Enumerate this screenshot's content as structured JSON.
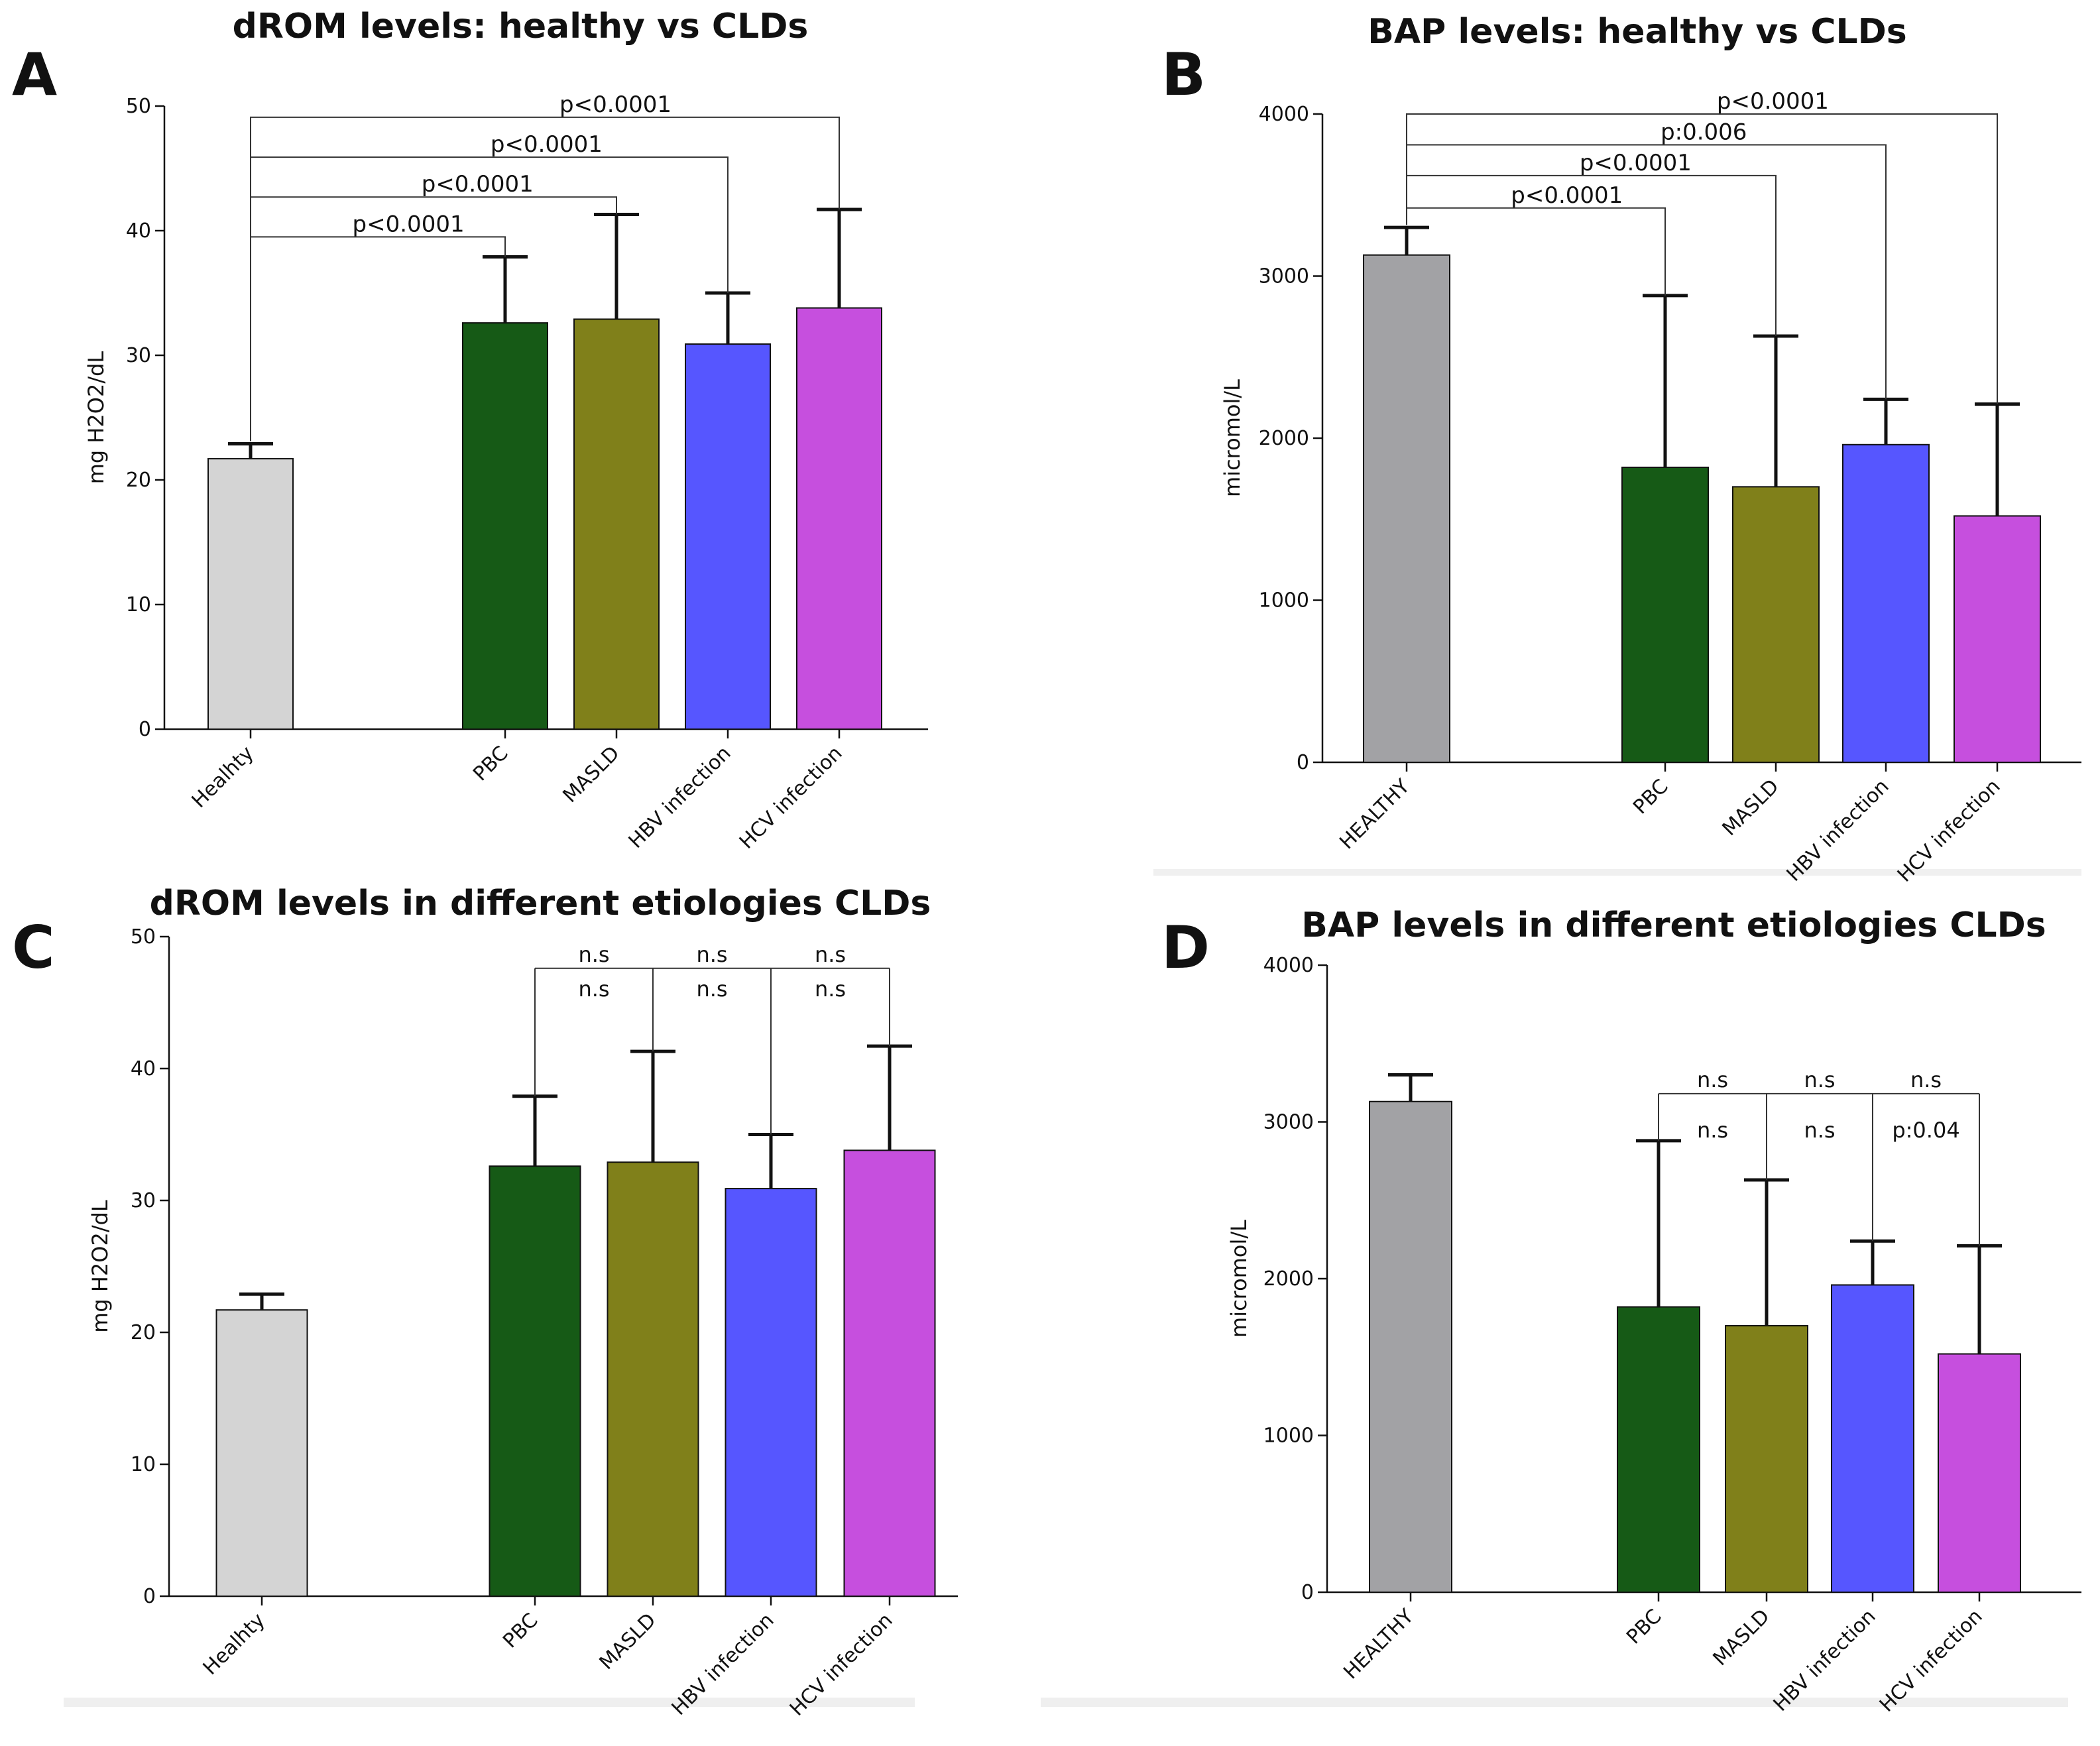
{
  "colors": {
    "healthy_light": "#d4d4d4",
    "healthy_dark": "#a2a2a5",
    "pbc": "#165a16",
    "masld": "#80801a",
    "hbv": "#5656ff",
    "hcv": "#c64fde",
    "axis": "#111111",
    "bracket": "#333333"
  },
  "chart_data": [
    {
      "type": "bar",
      "panel": "A",
      "title": "dROM levels: healthy vs CLDs",
      "ylabel": "mg H2O2/dL",
      "xlabel": "",
      "ylim": [
        0,
        50
      ],
      "yticks": [
        0,
        10,
        20,
        30,
        40,
        50
      ],
      "categories": [
        "Healhty",
        "PBC",
        "MASLD",
        "HBV infection",
        "HCV infection"
      ],
      "values": [
        21.7,
        32.6,
        32.9,
        30.9,
        33.8
      ],
      "errors": [
        1.2,
        5.3,
        8.4,
        4.1,
        7.9
      ],
      "annotations": [
        {
          "from": 0,
          "to": 1,
          "label": "p<0.0001",
          "level": 39.5
        },
        {
          "from": 0,
          "to": 2,
          "label": "p<0.0001",
          "level": 42.7
        },
        {
          "from": 0,
          "to": 3,
          "label": "p<0.0001",
          "level": 45.9
        },
        {
          "from": 0,
          "to": 4,
          "label": "p<0.0001",
          "level": 49.1
        }
      ]
    },
    {
      "type": "bar",
      "panel": "B",
      "title": "BAP levels: healthy vs CLDs",
      "ylabel": "micromol/L",
      "xlabel": "",
      "ylim": [
        0,
        4000
      ],
      "yticks": [
        0,
        1000,
        2000,
        3000,
        4000
      ],
      "categories": [
        "HEALTHY",
        "PBC",
        "MASLD",
        "HBV infection",
        "HCV infection"
      ],
      "values": [
        3130,
        1820,
        1700,
        1960,
        1520
      ],
      "errors": [
        170,
        1060,
        930,
        280,
        690
      ],
      "annotations": [
        {
          "from": 0,
          "to": 1,
          "label": "p<0.0001",
          "level": 3420
        },
        {
          "from": 0,
          "to": 2,
          "label": "p<0.0001",
          "level": 3620
        },
        {
          "from": 0,
          "to": 3,
          "label": "p:0.006",
          "level": 3810
        },
        {
          "from": 0,
          "to": 4,
          "label": "p<0.0001",
          "level": 4000
        }
      ]
    },
    {
      "type": "bar",
      "panel": "C",
      "title": "dROM levels in different etiologies CLDs",
      "ylabel": "mg H2O2/dL",
      "xlabel": "",
      "ylim": [
        0,
        50
      ],
      "yticks": [
        0,
        10,
        20,
        30,
        40,
        50
      ],
      "categories": [
        "Healhty",
        "PBC",
        "MASLD",
        "HBV infection",
        "HCV infection"
      ],
      "values": [
        21.7,
        32.6,
        32.9,
        30.9,
        33.8
      ],
      "errors": [
        1.2,
        5.3,
        8.4,
        4.1,
        7.9
      ],
      "bracket": {
        "level": 47.6,
        "from": 1,
        "to": 4
      },
      "annotations_top": [
        "n.s",
        "n.s",
        "n.s"
      ],
      "annotations_bottom": [
        "n.s",
        "n.s",
        "n.s"
      ]
    },
    {
      "type": "bar",
      "panel": "D",
      "title": "BAP levels in different etiologies CLDs",
      "ylabel": "micromol/L",
      "xlabel": "",
      "ylim": [
        0,
        4000
      ],
      "yticks": [
        0,
        1000,
        2000,
        3000,
        4000
      ],
      "categories": [
        "HEALTHY",
        "PBC",
        "MASLD",
        "HBV infection",
        "HCV infection"
      ],
      "values": [
        3130,
        1820,
        1700,
        1960,
        1520
      ],
      "errors": [
        170,
        1060,
        930,
        280,
        690
      ],
      "bracket": {
        "level": 3180,
        "from": 1,
        "to": 4
      },
      "annotations_top": [
        "n.s",
        "n.s",
        "n.s"
      ],
      "annotations_bottom": [
        "n.s",
        "n.s",
        "p:0.04"
      ]
    }
  ]
}
